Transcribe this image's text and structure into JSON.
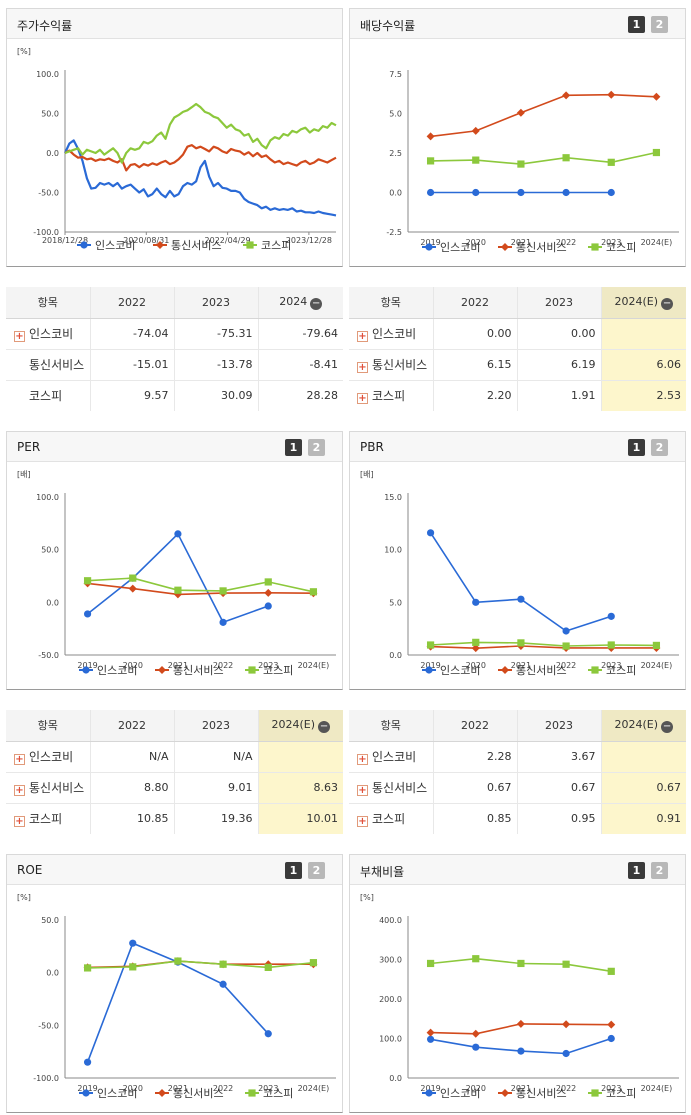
{
  "panels": {
    "stock_return": {
      "title": "주가수익률",
      "unit": "[%]"
    },
    "dividend": {
      "title": "배당수익률",
      "btn1": "1",
      "btn2": "2"
    },
    "per": {
      "title": "PER",
      "unit": "[배]",
      "btn1": "1",
      "btn2": "2"
    },
    "pbr": {
      "title": "PBR",
      "unit": "[배]",
      "btn1": "1",
      "btn2": "2"
    },
    "roe": {
      "title": "ROE",
      "unit": "[%]",
      "btn1": "1",
      "btn2": "2"
    },
    "debt": {
      "title": "부채비율",
      "unit": "[%]",
      "btn1": "1",
      "btn2": "2"
    }
  },
  "legend": [
    {
      "name": "인스코비",
      "color": "#2a6ad6",
      "marker": "circle"
    },
    {
      "name": "통신서비스",
      "color": "#d24a1c",
      "marker": "diamond"
    },
    {
      "name": "코스피",
      "color": "#8cc83c",
      "marker": "square"
    }
  ],
  "tables": {
    "stock_return": {
      "header": [
        "항목",
        "2022",
        "2023",
        "2024"
      ],
      "rows": [
        {
          "label": "인스코비",
          "plus": true,
          "values": [
            "-74.04",
            "-75.31",
            "-79.64"
          ]
        },
        {
          "label": "통신서비스",
          "plus": false,
          "values": [
            "-15.01",
            "-13.78",
            "-8.41"
          ]
        },
        {
          "label": "코스피",
          "plus": false,
          "values": [
            "9.57",
            "30.09",
            "28.28"
          ]
        }
      ]
    },
    "dividend": {
      "header": [
        "항목",
        "2022",
        "2023",
        "2024(E)"
      ],
      "rows": [
        {
          "label": "인스코비",
          "plus": true,
          "values": [
            "0.00",
            "0.00",
            ""
          ]
        },
        {
          "label": "통신서비스",
          "plus": true,
          "values": [
            "6.15",
            "6.19",
            "6.06"
          ]
        },
        {
          "label": "코스피",
          "plus": true,
          "values": [
            "2.20",
            "1.91",
            "2.53"
          ]
        }
      ]
    },
    "per": {
      "header": [
        "항목",
        "2022",
        "2023",
        "2024(E)"
      ],
      "rows": [
        {
          "label": "인스코비",
          "plus": true,
          "values": [
            "N/A",
            "N/A",
            ""
          ]
        },
        {
          "label": "통신서비스",
          "plus": true,
          "values": [
            "8.80",
            "9.01",
            "8.63"
          ]
        },
        {
          "label": "코스피",
          "plus": true,
          "values": [
            "10.85",
            "19.36",
            "10.01"
          ]
        }
      ]
    },
    "pbr": {
      "header": [
        "항목",
        "2022",
        "2023",
        "2024(E)"
      ],
      "rows": [
        {
          "label": "인스코비",
          "plus": true,
          "values": [
            "2.28",
            "3.67",
            ""
          ]
        },
        {
          "label": "통신서비스",
          "plus": true,
          "values": [
            "0.67",
            "0.67",
            "0.67"
          ]
        },
        {
          "label": "코스피",
          "plus": true,
          "values": [
            "0.85",
            "0.95",
            "0.91"
          ]
        }
      ]
    }
  },
  "chart_data": [
    {
      "id": "stock_return",
      "type": "line",
      "title": "주가수익률",
      "ylim": [
        -100,
        100
      ],
      "yticks": [
        "100.0",
        "50.0",
        "0.0",
        "-50.0",
        "-100.0"
      ],
      "xticks": [
        "2018/12/28",
        "2020/08/31",
        "2022/04/29",
        "2023/12/28"
      ],
      "series": [
        {
          "name": "인스코비",
          "color": "#2a6ad6",
          "values": [
            0,
            12,
            16,
            5,
            -10,
            -32,
            -45,
            -44,
            -38,
            -40,
            -38,
            -42,
            -38,
            -45,
            -42,
            -40,
            -45,
            -50,
            -46,
            -55,
            -52,
            -45,
            -52,
            -56,
            -48,
            -55,
            -52,
            -42,
            -38,
            -40,
            -36,
            -18,
            -10,
            -30,
            -42,
            -38,
            -44,
            -45,
            -48,
            -48,
            -50,
            -58,
            -62,
            -64,
            -66,
            -70,
            -68,
            -72,
            -70,
            -72,
            -71,
            -72,
            -70,
            -74,
            -73,
            -75,
            -75,
            -76,
            -74,
            -76,
            -77,
            -78,
            -79
          ]
        },
        {
          "name": "통신서비스",
          "color": "#d24a1c",
          "values": [
            0,
            3,
            -2,
            -6,
            -5,
            -8,
            -7,
            -10,
            -8,
            -9,
            -7,
            -10,
            -12,
            -8,
            -22,
            -15,
            -14,
            -18,
            -14,
            -16,
            -13,
            -15,
            -12,
            -10,
            -14,
            -12,
            -8,
            -2,
            8,
            10,
            6,
            8,
            5,
            2,
            8,
            6,
            2,
            0,
            5,
            3,
            2,
            -2,
            1,
            -4,
            0,
            -5,
            -3,
            -8,
            -12,
            -10,
            -14,
            -12,
            -14,
            -16,
            -12,
            -10,
            -14,
            -12,
            -8,
            -10,
            -12,
            -9,
            -6
          ]
        },
        {
          "name": "코스피",
          "color": "#8cc83c",
          "values": [
            0,
            2,
            4,
            6,
            -2,
            4,
            2,
            0,
            4,
            -2,
            2,
            6,
            0,
            -12,
            0,
            6,
            4,
            6,
            14,
            12,
            15,
            22,
            26,
            18,
            36,
            45,
            48,
            52,
            54,
            58,
            62,
            58,
            52,
            50,
            46,
            44,
            38,
            32,
            36,
            30,
            28,
            22,
            24,
            14,
            18,
            10,
            6,
            16,
            20,
            18,
            24,
            22,
            28,
            26,
            30,
            32,
            26,
            30,
            28,
            34,
            32,
            38,
            35
          ]
        }
      ]
    },
    {
      "id": "dividend",
      "type": "line",
      "title": "배당수익률",
      "ylim": [
        -2.5,
        7.5
      ],
      "yticks": [
        "7.5",
        "5.0",
        "2.5",
        "0.0",
        "-2.5"
      ],
      "categories": [
        "2019",
        "2020",
        "2021",
        "2022",
        "2023",
        "2024(E)"
      ],
      "series": [
        {
          "name": "인스코비",
          "color": "#2a6ad6",
          "values": [
            0.0,
            0.0,
            0.0,
            0.0,
            0.0,
            null
          ]
        },
        {
          "name": "통신서비스",
          "color": "#d24a1c",
          "values": [
            3.55,
            3.9,
            5.05,
            6.15,
            6.19,
            6.06
          ]
        },
        {
          "name": "코스피",
          "color": "#8cc83c",
          "values": [
            2.0,
            2.05,
            1.8,
            2.2,
            1.91,
            2.53
          ]
        }
      ]
    },
    {
      "id": "per",
      "type": "line",
      "title": "PER",
      "ylim": [
        -50,
        100
      ],
      "yticks": [
        "100.0",
        "50.0",
        "0.0",
        "-50.0"
      ],
      "categories": [
        "2019",
        "2020",
        "2021",
        "2022",
        "2023",
        "2024(E)"
      ],
      "series": [
        {
          "name": "인스코비",
          "color": "#2a6ad6",
          "values": [
            -11,
            23,
            65,
            -19,
            -3.5,
            null
          ]
        },
        {
          "name": "통신서비스",
          "color": "#d24a1c",
          "values": [
            18,
            13,
            7.5,
            8.8,
            9.01,
            8.63
          ]
        },
        {
          "name": "코스피",
          "color": "#8cc83c",
          "values": [
            20.5,
            23,
            11.5,
            10.85,
            19.36,
            10.01
          ]
        }
      ]
    },
    {
      "id": "pbr",
      "type": "line",
      "title": "PBR",
      "ylim": [
        0,
        15
      ],
      "yticks": [
        "15.0",
        "10.0",
        "5.0",
        "0.0"
      ],
      "categories": [
        "2019",
        "2020",
        "2021",
        "2022",
        "2023",
        "2024(E)"
      ],
      "series": [
        {
          "name": "인스코비",
          "color": "#2a6ad6",
          "values": [
            11.6,
            5.0,
            5.3,
            2.28,
            3.67,
            null
          ]
        },
        {
          "name": "통신서비스",
          "color": "#d24a1c",
          "values": [
            0.8,
            0.65,
            0.85,
            0.67,
            0.67,
            0.67
          ]
        },
        {
          "name": "코스피",
          "color": "#8cc83c",
          "values": [
            0.95,
            1.2,
            1.15,
            0.85,
            0.95,
            0.91
          ]
        }
      ]
    },
    {
      "id": "roe",
      "type": "line",
      "title": "ROE",
      "ylim": [
        -100,
        50
      ],
      "yticks": [
        "50.0",
        "0.0",
        "-50.0",
        "-100.0"
      ],
      "categories": [
        "2019",
        "2020",
        "2021",
        "2022",
        "2023",
        "2024(E)"
      ],
      "series": [
        {
          "name": "인스코비",
          "color": "#2a6ad6",
          "values": [
            -85,
            28,
            10,
            -11,
            -58,
            null
          ]
        },
        {
          "name": "통신서비스",
          "color": "#d24a1c",
          "values": [
            5,
            6,
            11,
            8,
            8,
            8
          ]
        },
        {
          "name": "코스피",
          "color": "#8cc83c",
          "values": [
            4.5,
            5.5,
            11,
            8,
            5,
            9.5
          ]
        }
      ]
    },
    {
      "id": "debt",
      "type": "line",
      "title": "부채비율",
      "ylim": [
        0,
        400
      ],
      "yticks": [
        "400.0",
        "300.0",
        "200.0",
        "100.0",
        "0.0"
      ],
      "categories": [
        "2019",
        "2020",
        "2021",
        "2022",
        "2023",
        "2024(E)"
      ],
      "series": [
        {
          "name": "인스코비",
          "color": "#2a6ad6",
          "values": [
            98,
            78,
            68,
            62,
            100,
            null
          ]
        },
        {
          "name": "통신서비스",
          "color": "#d24a1c",
          "values": [
            115,
            112,
            137,
            136,
            135,
            null
          ]
        },
        {
          "name": "코스피",
          "color": "#8cc83c",
          "values": [
            290,
            302,
            290,
            288,
            270,
            null
          ]
        }
      ]
    }
  ]
}
